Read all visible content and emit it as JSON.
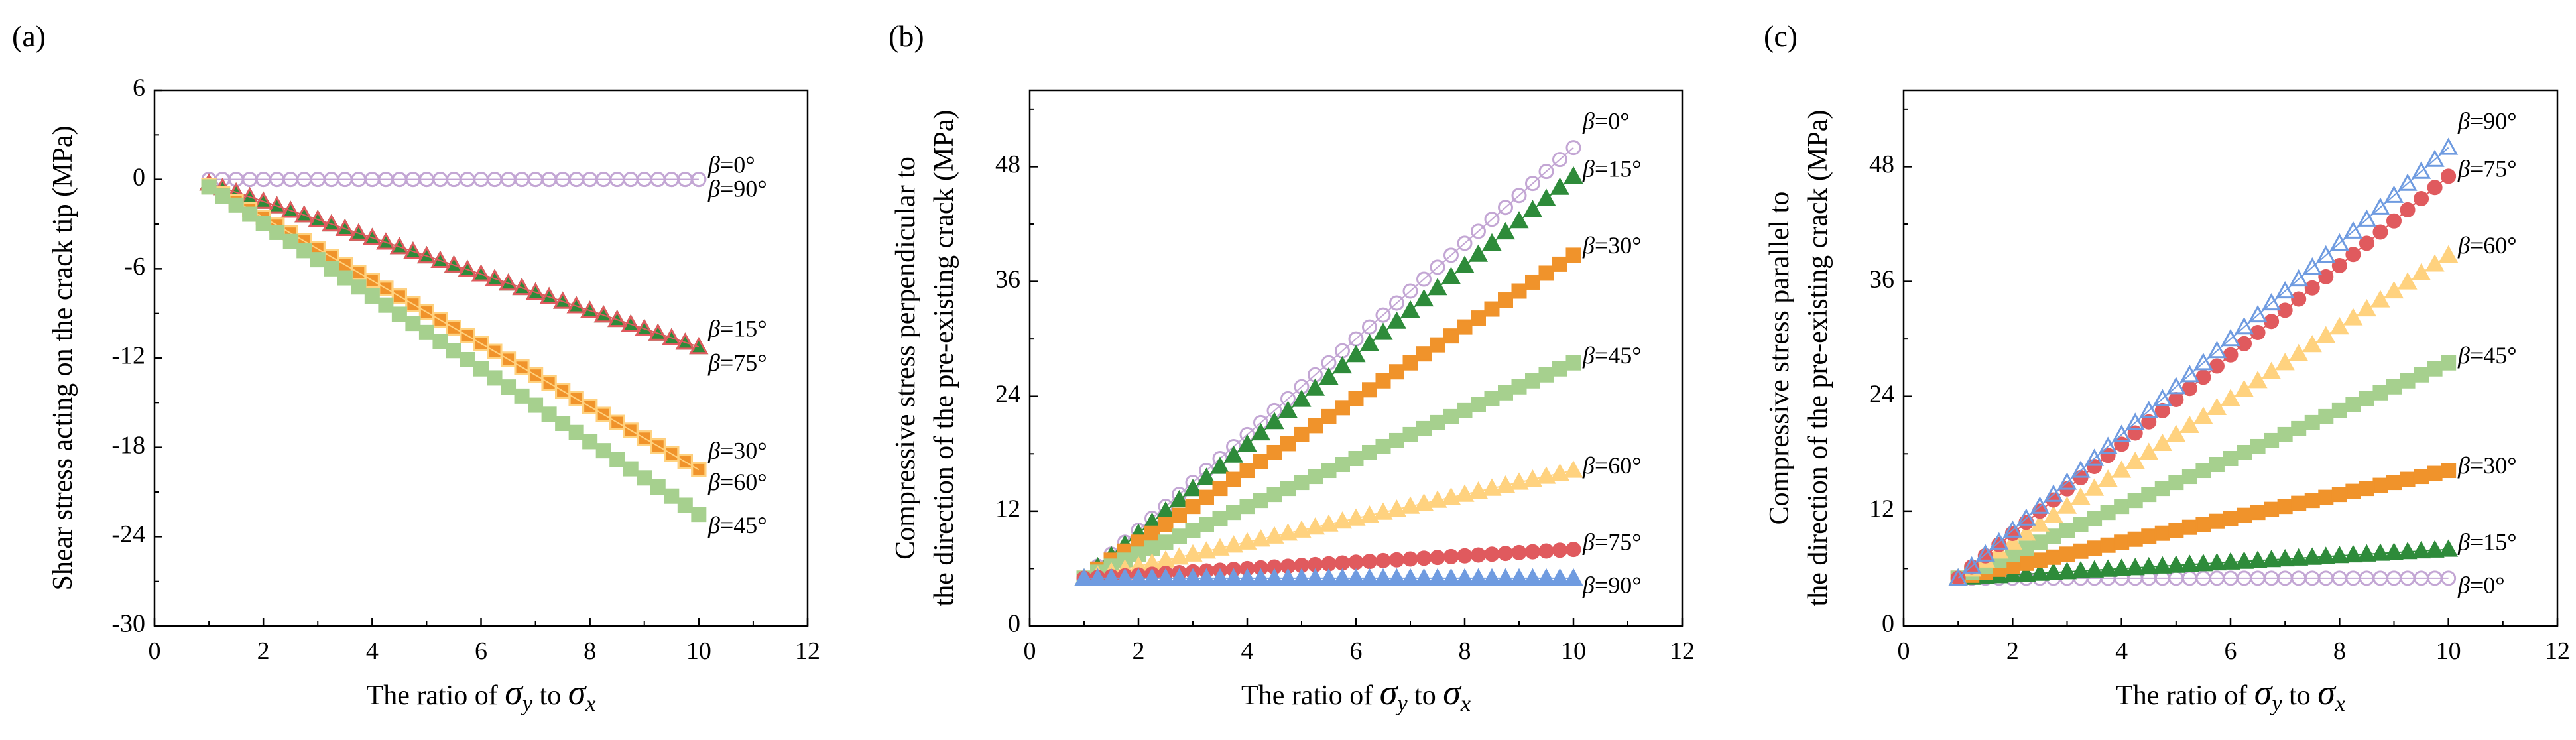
{
  "chart_data": [
    {
      "type": "scatter",
      "panel_label": "(a)",
      "xlabel": {
        "prefix": "The ratio of ",
        "sym1": "σ",
        "sub1": "y",
        "mid": " to ",
        "sym2": "σ",
        "sub2": "x"
      },
      "ylabel": [
        "Shear stress acting on the crack tip  (MPa)"
      ],
      "xlim": [
        0,
        12
      ],
      "ylim": [
        -30,
        6
      ],
      "xticks": [
        0,
        2,
        4,
        6,
        8,
        10,
        12
      ],
      "yticks": [
        -30,
        -24,
        -18,
        -12,
        -6,
        0,
        6
      ],
      "x": {
        "start": 1,
        "end": 10,
        "step": 0.25
      },
      "series": [
        {
          "name": "β=0°",
          "marker": "circle",
          "filled": false,
          "color": "#c3a6d4",
          "y_start": 0,
          "y_end": 0
        },
        {
          "name": "β=90°",
          "marker": "circle",
          "filled": false,
          "color": "#c3a6d4",
          "y_start": 0,
          "y_end": 0
        },
        {
          "name": "β=15°",
          "marker": "triangle",
          "filled": true,
          "color": "#2e8b3a",
          "y_start": -0.25,
          "y_end": -11.25
        },
        {
          "name": "β=75°",
          "marker": "triangle",
          "filled": false,
          "color": "#e05a5e",
          "y_start": -0.25,
          "y_end": -11.25
        },
        {
          "name": "β=30°",
          "marker": "square",
          "filled": true,
          "color": "#f0932b",
          "y_start": -0.43,
          "y_end": -19.5
        },
        {
          "name": "β=60°",
          "marker": "square",
          "filled": false,
          "color": "#ffd27f",
          "y_start": -0.43,
          "y_end": -19.5
        },
        {
          "name": "β=45°",
          "marker": "square",
          "filled": true,
          "color": "#a6d08e",
          "y_start": -0.5,
          "y_end": -22.5
        }
      ],
      "labels": [
        {
          "prefix": "β",
          "text": "=0°",
          "y": 0.8
        },
        {
          "prefix": "β",
          "text": "=90°",
          "y": -0.8
        },
        {
          "prefix": "β",
          "text": "=15°",
          "y": -10.2
        },
        {
          "prefix": "β",
          "text": "=75°",
          "y": -12.5
        },
        {
          "prefix": "β",
          "text": "=30°",
          "y": -18.4
        },
        {
          "prefix": "β",
          "text": "=60°",
          "y": -20.5
        },
        {
          "prefix": "β",
          "text": "=45°",
          "y": -23.4
        }
      ]
    },
    {
      "type": "scatter",
      "panel_label": "(b)",
      "xlabel": {
        "prefix": "The ratio of ",
        "sym1": "σ",
        "sub1": "y",
        "mid": " to ",
        "sym2": "σ",
        "sub2": "x"
      },
      "ylabel": [
        "Compressive stress perpendicular to",
        "the direction of the pre-existing crack  (MPa)"
      ],
      "xlim": [
        0,
        12
      ],
      "ylim": [
        0,
        56
      ],
      "xticks": [
        0,
        2,
        4,
        6,
        8,
        10,
        12
      ],
      "yticks": [
        0,
        12,
        24,
        36,
        48
      ],
      "x": {
        "start": 1,
        "end": 10,
        "step": 0.25
      },
      "series": [
        {
          "name": "β=0°",
          "marker": "circle",
          "filled": false,
          "color": "#c3a6d4",
          "y_start": 5,
          "y_end": 50
        },
        {
          "name": "β=15°",
          "marker": "triangle",
          "filled": true,
          "color": "#2e8b3a",
          "y_start": 5,
          "y_end": 47
        },
        {
          "name": "β=30°",
          "marker": "square",
          "filled": true,
          "color": "#f0932b",
          "y_start": 5,
          "y_end": 38.75
        },
        {
          "name": "β=45°",
          "marker": "square",
          "filled": true,
          "color": "#a6d08e",
          "y_start": 5,
          "y_end": 27.5
        },
        {
          "name": "β=60°",
          "marker": "triangle",
          "filled": true,
          "color": "#ffd27f",
          "y_start": 5,
          "y_end": 16.25
        },
        {
          "name": "β=75°",
          "marker": "circle",
          "filled": true,
          "color": "#e05a5e",
          "y_start": 5,
          "y_end": 8
        },
        {
          "name": "β=90°",
          "marker": "triangle",
          "filled": true,
          "color": "#6f9be0",
          "y_start": 5,
          "y_end": 5
        }
      ],
      "labels": [
        {
          "prefix": "β",
          "text": "=0°",
          "y": 52.5
        },
        {
          "prefix": "β",
          "text": "=15°",
          "y": 47.5
        },
        {
          "prefix": "β",
          "text": "=30°",
          "y": 39.5
        },
        {
          "prefix": "β",
          "text": "=45°",
          "y": 28
        },
        {
          "prefix": "β",
          "text": "=60°",
          "y": 16.5
        },
        {
          "prefix": "β",
          "text": "=75°",
          "y": 8.5
        },
        {
          "prefix": "β",
          "text": "=90°",
          "y": 4
        }
      ]
    },
    {
      "type": "scatter",
      "panel_label": "(c)",
      "xlabel": {
        "prefix": "The ratio of ",
        "sym1": "σ",
        "sub1": "y",
        "mid": " to ",
        "sym2": "σ",
        "sub2": "x"
      },
      "ylabel": [
        "Compressive stress parallel to",
        "the direction of the pre-existing crack  (MPa)"
      ],
      "xlim": [
        0,
        12
      ],
      "ylim": [
        0,
        56
      ],
      "xticks": [
        0,
        2,
        4,
        6,
        8,
        10,
        12
      ],
      "yticks": [
        0,
        12,
        24,
        36,
        48
      ],
      "x": {
        "start": 1,
        "end": 10,
        "step": 0.25
      },
      "series": [
        {
          "name": "β=0°",
          "marker": "circle",
          "filled": false,
          "color": "#c3a6d4",
          "y_start": 5,
          "y_end": 5
        },
        {
          "name": "β=15°",
          "marker": "triangle",
          "filled": true,
          "color": "#2e8b3a",
          "y_start": 5,
          "y_end": 8
        },
        {
          "name": "β=30°",
          "marker": "square",
          "filled": true,
          "color": "#f0932b",
          "y_start": 5,
          "y_end": 16.25
        },
        {
          "name": "β=45°",
          "marker": "square",
          "filled": true,
          "color": "#a6d08e",
          "y_start": 5,
          "y_end": 27.5
        },
        {
          "name": "β=60°",
          "marker": "triangle",
          "filled": true,
          "color": "#ffd27f",
          "y_start": 5,
          "y_end": 38.75
        },
        {
          "name": "β=75°",
          "marker": "circle",
          "filled": true,
          "color": "#e05a5e",
          "y_start": 5,
          "y_end": 47
        },
        {
          "name": "β=90°",
          "marker": "triangle",
          "filled": false,
          "color": "#6f9be0",
          "y_start": 5,
          "y_end": 50
        }
      ],
      "labels": [
        {
          "prefix": "β",
          "text": "=90°",
          "y": 52.5
        },
        {
          "prefix": "β",
          "text": "=75°",
          "y": 47.5
        },
        {
          "prefix": "β",
          "text": "=60°",
          "y": 39.5
        },
        {
          "prefix": "β",
          "text": "=45°",
          "y": 28
        },
        {
          "prefix": "β",
          "text": "=30°",
          "y": 16.5
        },
        {
          "prefix": "β",
          "text": "=15°",
          "y": 8.5
        },
        {
          "prefix": "β",
          "text": "=0°",
          "y": 4
        }
      ]
    }
  ]
}
